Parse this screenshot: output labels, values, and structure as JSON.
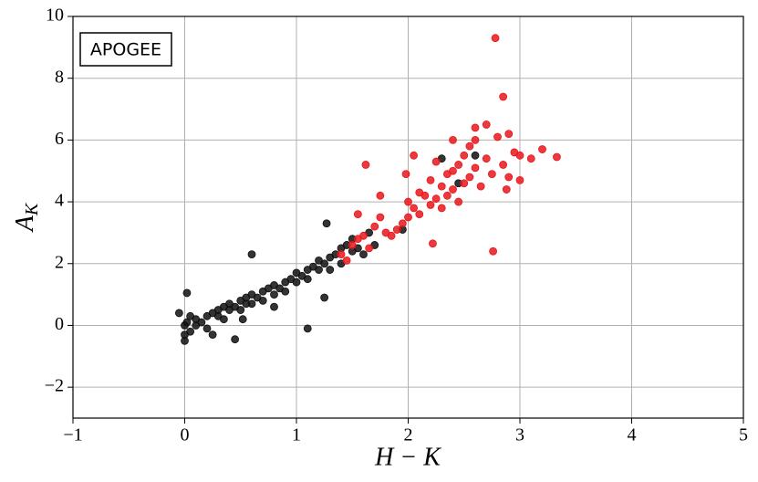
{
  "chart_data": {
    "type": "scatter",
    "annotation": "APOGEE",
    "xlabel": "H − K",
    "ylabel": "A",
    "ylabel_sub": "K",
    "xlim": [
      -1,
      5
    ],
    "ylim": [
      -3,
      10
    ],
    "xticks": [
      {
        "value": -1,
        "label": "−1"
      },
      0,
      1,
      2,
      3,
      4,
      5
    ],
    "yticks": [
      {
        "value": -2,
        "label": "−2"
      },
      0,
      2,
      4,
      6,
      8,
      10
    ],
    "grid": true,
    "series": [
      {
        "color": "#111111",
        "x": [
          0,
          0,
          0,
          0.02,
          0.05,
          0.05,
          0.1,
          0.1,
          0.15,
          0.2,
          0.2,
          0.25,
          0.3,
          0.3,
          0.35,
          0.35,
          0.4,
          0.4,
          0.45,
          0.5,
          0.5,
          0.55,
          0.55,
          0.6,
          0.6,
          0.65,
          0.7,
          0.7,
          0.75,
          0.8,
          0.8,
          0.85,
          0.9,
          0.9,
          0.95,
          1.0,
          1.0,
          1.05,
          1.1,
          1.1,
          1.15,
          1.2,
          1.2,
          1.25,
          1.3,
          1.3,
          1.35,
          1.4,
          1.4,
          1.45,
          1.5,
          1.5,
          1.55,
          1.6,
          1.65,
          1.7,
          0.02,
          0.6,
          0.52,
          0.45,
          1.1,
          1.27,
          1.95,
          2.6,
          2.45,
          2.3,
          -0.05,
          0.25,
          0.8,
          1.25
        ],
        "values": [
          0,
          -0.3,
          -0.5,
          0.1,
          -0.2,
          0.3,
          0,
          0.2,
          0.1,
          0.3,
          -0.1,
          0.4,
          0.3,
          0.5,
          0.6,
          0.2,
          0.5,
          0.7,
          0.6,
          0.8,
          0.5,
          0.9,
          0.7,
          1.0,
          0.7,
          0.9,
          1.1,
          0.8,
          1.2,
          1.0,
          1.3,
          1.2,
          1.4,
          1.1,
          1.5,
          1.4,
          1.7,
          1.6,
          1.8,
          1.5,
          1.9,
          1.8,
          2.1,
          2.0,
          2.2,
          1.8,
          2.3,
          2.5,
          2.0,
          2.6,
          2.4,
          2.8,
          2.5,
          2.3,
          3.0,
          2.6,
          1.05,
          2.3,
          0.2,
          -0.45,
          -0.1,
          3.3,
          3.1,
          5.5,
          4.6,
          5.4,
          0.4,
          -0.3,
          0.6,
          0.9
        ]
      },
      {
        "color": "#e8161b",
        "x": [
          1.4,
          1.45,
          1.5,
          1.55,
          1.6,
          1.65,
          1.7,
          1.75,
          1.8,
          1.85,
          1.9,
          1.95,
          2.0,
          2.0,
          2.05,
          2.1,
          2.1,
          2.15,
          2.2,
          2.2,
          2.25,
          2.25,
          2.3,
          2.3,
          2.35,
          2.35,
          2.4,
          2.4,
          2.45,
          2.45,
          2.5,
          2.5,
          2.55,
          2.55,
          2.6,
          2.6,
          2.65,
          2.7,
          2.7,
          2.75,
          2.78,
          2.85,
          2.8,
          2.85,
          2.9,
          2.95,
          3.0,
          3.0,
          3.1,
          3.2,
          3.33,
          2.76,
          2.22,
          1.62,
          1.55,
          1.98,
          2.05,
          2.4,
          2.6,
          2.9,
          1.75,
          2.88
        ],
        "values": [
          2.3,
          2.1,
          2.6,
          2.8,
          2.9,
          2.5,
          3.2,
          3.5,
          3.0,
          2.9,
          3.1,
          3.3,
          3.5,
          4.0,
          3.8,
          4.3,
          3.6,
          4.2,
          4.7,
          3.9,
          5.3,
          4.1,
          4.5,
          3.8,
          4.9,
          4.2,
          5.0,
          4.4,
          5.2,
          4.0,
          5.5,
          4.6,
          5.8,
          4.8,
          6.4,
          5.1,
          4.5,
          6.5,
          5.4,
          4.9,
          9.3,
          7.4,
          6.1,
          5.2,
          4.8,
          5.6,
          4.7,
          5.5,
          5.4,
          5.7,
          5.45,
          2.4,
          2.65,
          5.2,
          3.6,
          4.9,
          5.5,
          6.0,
          6.0,
          6.2,
          4.2,
          4.4
        ]
      }
    ]
  }
}
